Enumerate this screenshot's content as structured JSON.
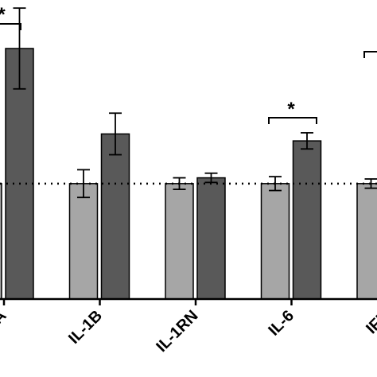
{
  "chart_data": {
    "type": "bar",
    "categories": [
      "A",
      "IL-1B",
      "IL-1RN",
      "IL-6",
      "IFN"
    ],
    "series": [
      {
        "color": "#a6a6a6",
        "values": [
          1.0,
          1.0,
          1.0,
          1.0,
          1.0
        ],
        "errors": [
          null,
          0.12,
          0.05,
          0.06,
          0.04
        ]
      },
      {
        "color": "#595959",
        "values": [
          2.17,
          1.43,
          1.05,
          1.37,
          null
        ],
        "errors": [
          0.35,
          0.18,
          0.04,
          0.07,
          null
        ]
      }
    ],
    "ylim": [
      0,
      2.59
    ],
    "reference_line": 1,
    "annotations": [
      "*",
      "*"
    ]
  }
}
